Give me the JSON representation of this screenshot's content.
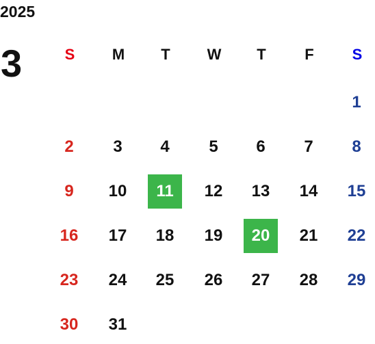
{
  "year": "2025",
  "month": "3",
  "weekdays": [
    "S",
    "M",
    "T",
    "W",
    "T",
    "F",
    "S"
  ],
  "weeks": [
    [
      null,
      null,
      null,
      null,
      null,
      null,
      1
    ],
    [
      2,
      3,
      4,
      5,
      6,
      7,
      8
    ],
    [
      9,
      10,
      11,
      12,
      13,
      14,
      15
    ],
    [
      16,
      17,
      18,
      19,
      20,
      21,
      22
    ],
    [
      23,
      24,
      25,
      26,
      27,
      28,
      29
    ],
    [
      30,
      31,
      null,
      null,
      null,
      null,
      null
    ]
  ],
  "highlighted_days": [
    11,
    20
  ],
  "highlight_color": "#3cb54a",
  "colors": {
    "sunday_header": "#e60012",
    "saturday_header": "#0000e6",
    "sunday": "#d7261e",
    "saturday": "#1f3f94",
    "weekday": "#111111"
  }
}
